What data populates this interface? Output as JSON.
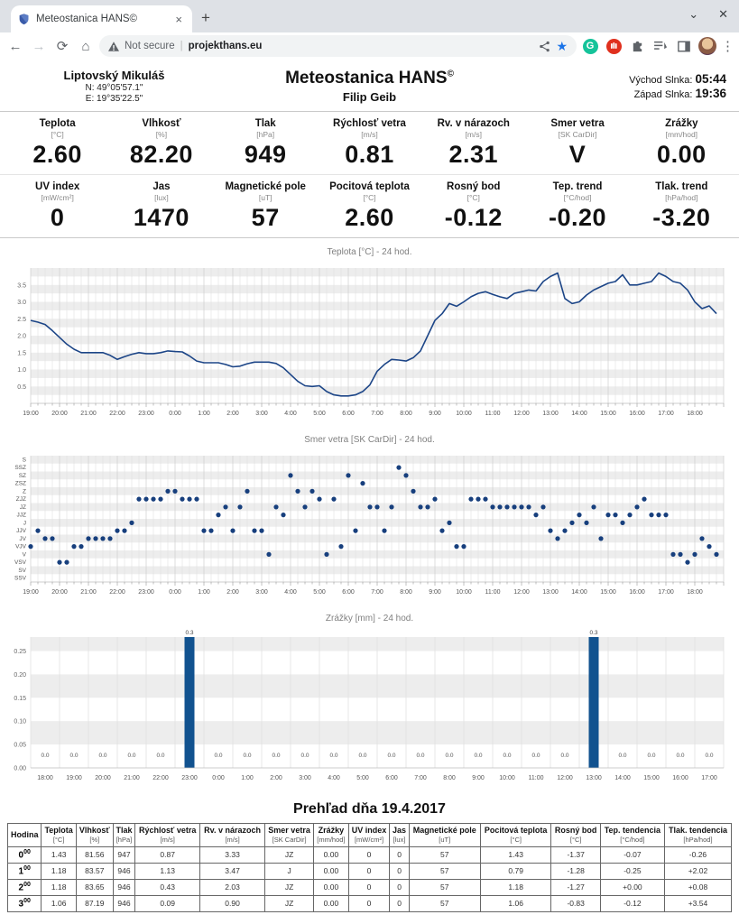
{
  "browser": {
    "tab_title": "Meteostanica HANS©",
    "new_tab": "+",
    "close_tab": "×",
    "window_chevron": "⌄",
    "window_close": "✕",
    "back": "←",
    "forward": "→",
    "reload": "⟳",
    "home": "⌂",
    "security": "Not secure",
    "url": "projekthans.eu",
    "menu": "⋮"
  },
  "header": {
    "location": "Liptovský Mikuláš",
    "lat": "N: 49°05'57.1\"",
    "lon": "E: 19°35'22.5\"",
    "title": "Meteostanica HANS",
    "title_sup": "©",
    "author": "Filip Geib",
    "sunrise_label": "Východ Slnka:",
    "sunrise": "05:44",
    "sunset_label": "Západ Slnka:",
    "sunset": "19:36"
  },
  "metrics_row1": [
    {
      "label": "Teplota",
      "unit": "[°C]",
      "value": "2.60"
    },
    {
      "label": "Vlhkosť",
      "unit": "[%]",
      "value": "82.20"
    },
    {
      "label": "Tlak",
      "unit": "[hPa]",
      "value": "949"
    },
    {
      "label": "Rýchlosť vetra",
      "unit": "[m/s]",
      "value": "0.81"
    },
    {
      "label": "Rv. v nárazoch",
      "unit": "[m/s]",
      "value": "2.31"
    },
    {
      "label": "Smer vetra",
      "unit": "[SK CarDir]",
      "value": "V"
    },
    {
      "label": "Zrážky",
      "unit": "[mm/hod]",
      "value": "0.00"
    }
  ],
  "metrics_row2": [
    {
      "label": "UV index",
      "unit": "[mW/cm²]",
      "value": "0"
    },
    {
      "label": "Jas",
      "unit": "[lux]",
      "value": "1470"
    },
    {
      "label": "Magnetické pole",
      "unit": "[uT]",
      "value": "57"
    },
    {
      "label": "Pocitová teplota",
      "unit": "[°C]",
      "value": "2.60"
    },
    {
      "label": "Rosný bod",
      "unit": "[°C]",
      "value": "-0.12"
    },
    {
      "label": "Tep. trend",
      "unit": "[°C/hod]",
      "value": "-0.20"
    },
    {
      "label": "Tlak. trend",
      "unit": "[hPa/hod]",
      "value": "-3.20"
    }
  ],
  "chart_data": [
    {
      "type": "line",
      "title": "Teplota [°C] - 24 hod.",
      "interval_min": 15,
      "x_hour_labels": [
        "19:00",
        "20:00",
        "21:00",
        "22:00",
        "23:00",
        "0:00",
        "1:00",
        "2:00",
        "3:00",
        "4:00",
        "5:00",
        "6:00",
        "7:00",
        "8:00",
        "9:00",
        "10:00",
        "11:00",
        "12:00",
        "13:00",
        "14:00",
        "15:00",
        "16:00",
        "17:00",
        "18:00"
      ],
      "ylim": [
        0,
        4
      ],
      "ytick_labels": [
        "0.5",
        "1.0",
        "1.5",
        "2.0",
        "2.5",
        "3.0",
        "3.5"
      ],
      "line_color": "#1c4587",
      "values": [
        2.45,
        2.4,
        2.33,
        2.15,
        1.95,
        1.75,
        1.6,
        1.5,
        1.5,
        1.5,
        1.5,
        1.42,
        1.3,
        1.38,
        1.45,
        1.5,
        1.47,
        1.47,
        1.5,
        1.55,
        1.53,
        1.52,
        1.4,
        1.25,
        1.2,
        1.2,
        1.2,
        1.15,
        1.08,
        1.1,
        1.17,
        1.22,
        1.22,
        1.22,
        1.18,
        1.05,
        0.85,
        0.65,
        0.52,
        0.5,
        0.52,
        0.35,
        0.25,
        0.22,
        0.22,
        0.25,
        0.35,
        0.55,
        0.95,
        1.15,
        1.3,
        1.28,
        1.25,
        1.35,
        1.55,
        2.0,
        2.45,
        2.65,
        2.95,
        2.87,
        3.0,
        3.15,
        3.25,
        3.3,
        3.22,
        3.15,
        3.1,
        3.25,
        3.3,
        3.35,
        3.32,
        3.6,
        3.75,
        3.85,
        3.1,
        2.95,
        3.0,
        3.2,
        3.35,
        3.45,
        3.55,
        3.6,
        3.8,
        3.5,
        3.5,
        3.55,
        3.6,
        3.85,
        3.75,
        3.6,
        3.55,
        3.35,
        3.0,
        2.8,
        2.88,
        2.65
      ]
    },
    {
      "type": "scatter",
      "title": "Smer vetra [SK CarDir] - 24 hod.",
      "interval_min": 15,
      "x_hour_labels": [
        "19:00",
        "20:00",
        "21:00",
        "22:00",
        "23:00",
        "0:00",
        "1:00",
        "2:00",
        "3:00",
        "4:00",
        "5:00",
        "6:00",
        "7:00",
        "8:00",
        "9:00",
        "10:00",
        "11:00",
        "12:00",
        "13:00",
        "14:00",
        "15:00",
        "16:00",
        "17:00",
        "18:00"
      ],
      "directions": [
        "S",
        "SSZ",
        "SZ",
        "ZSZ",
        "Z",
        "ZJZ",
        "JZ",
        "JJZ",
        "J",
        "JJV",
        "JV",
        "VJV",
        "V",
        "VSV",
        "SV",
        "SSV"
      ],
      "dot_color": "#173f7d",
      "values": [
        "VJV",
        "JJV",
        "JV",
        "JV",
        "VSV",
        "VSV",
        "VJV",
        "VJV",
        "JV",
        "JV",
        "JV",
        "JV",
        "JJV",
        "JJV",
        "J",
        "ZJZ",
        "ZJZ",
        "ZJZ",
        "ZJZ",
        "Z",
        "Z",
        "ZJZ",
        "ZJZ",
        "ZJZ",
        "JJV",
        "JJV",
        "JJZ",
        "JZ",
        "JJV",
        "JZ",
        "Z",
        "JJV",
        "JJV",
        "V",
        "JZ",
        "JJZ",
        "SZ",
        "Z",
        "JZ",
        "Z",
        "ZJZ",
        "V",
        "ZJZ",
        "VJV",
        "SZ",
        "JJV",
        "ZSZ",
        "JZ",
        "JZ",
        "JJV",
        "JZ",
        "SSZ",
        "SZ",
        "Z",
        "JZ",
        "JZ",
        "ZJZ",
        "JJV",
        "J",
        "VJV",
        "VJV",
        "ZJZ",
        "ZJZ",
        "ZJZ",
        "JZ",
        "JZ",
        "JZ",
        "JZ",
        "JZ",
        "JZ",
        "JJZ",
        "JZ",
        "JJV",
        "JV",
        "JJV",
        "J",
        "JJZ",
        "J",
        "JZ",
        "JV",
        "JJZ",
        "JJZ",
        "J",
        "JJZ",
        "JZ",
        "ZJZ",
        "JJZ",
        "JJZ",
        "JJZ",
        "V",
        "V",
        "VSV",
        "V",
        "JV",
        "VJV",
        "V"
      ]
    },
    {
      "type": "bar",
      "title": "Zrážky [mm] - 24 hod.",
      "categories": [
        "18:00",
        "19:00",
        "20:00",
        "21:00",
        "22:00",
        "23:00",
        "0:00",
        "1:00",
        "2:00",
        "3:00",
        "4:00",
        "5:00",
        "6:00",
        "7:00",
        "8:00",
        "9:00",
        "10:00",
        "11:00",
        "12:00",
        "13:00",
        "14:00",
        "15:00",
        "16:00",
        "17:00"
      ],
      "values": [
        0,
        0,
        0,
        0,
        0,
        0.3,
        0,
        0,
        0,
        0,
        0,
        0,
        0,
        0,
        0,
        0,
        0,
        0,
        0,
        0.3,
        0,
        0,
        0,
        0
      ],
      "ylim": [
        0,
        0.28
      ],
      "ytick_labels": [
        "0.00",
        "0.05",
        "0.10",
        "0.15",
        "0.20",
        "0.25"
      ],
      "bar_color": "#11528f"
    }
  ],
  "table": {
    "title": "Prehľad dňa 19.4.2017",
    "columns": [
      {
        "label": "Hodina",
        "unit": ""
      },
      {
        "label": "Teplota",
        "unit": "[°C]"
      },
      {
        "label": "Vlhkosť",
        "unit": "[%]"
      },
      {
        "label": "Tlak",
        "unit": "[hPa]"
      },
      {
        "label": "Rýchlosť vetra",
        "unit": "[m/s]"
      },
      {
        "label": "Rv. v nárazoch",
        "unit": "[m/s]"
      },
      {
        "label": "Smer vetra",
        "unit": "[SK CarDir]"
      },
      {
        "label": "Zrážky",
        "unit": "[mm/hod]"
      },
      {
        "label": "UV index",
        "unit": "[mW/cm²]"
      },
      {
        "label": "Jas",
        "unit": "[lux]"
      },
      {
        "label": "Magnetické pole",
        "unit": "[uT]"
      },
      {
        "label": "Pocitová teplota",
        "unit": "[°C]"
      },
      {
        "label": "Rosný bod",
        "unit": "[°C]"
      },
      {
        "label": "Tep. tendencia",
        "unit": "[°C/hod]"
      },
      {
        "label": "Tlak. tendencia",
        "unit": "[hPa/hod]"
      }
    ],
    "rows": [
      {
        "hodina": "0",
        "sup": "00",
        "cells": [
          "1.43",
          "81.56",
          "947",
          "0.87",
          "3.33",
          "JZ",
          "0.00",
          "0",
          "0",
          "57",
          "1.43",
          "-1.37",
          "-0.07",
          "-0.26"
        ]
      },
      {
        "hodina": "1",
        "sup": "00",
        "cells": [
          "1.18",
          "83.57",
          "946",
          "1.13",
          "3.47",
          "J",
          "0.00",
          "0",
          "0",
          "57",
          "0.79",
          "-1.28",
          "-0.25",
          "+2.02"
        ]
      },
      {
        "hodina": "2",
        "sup": "00",
        "cells": [
          "1.18",
          "83.65",
          "946",
          "0.43",
          "2.03",
          "JZ",
          "0.00",
          "0",
          "0",
          "57",
          "1.18",
          "-1.27",
          "+0.00",
          "+0.08"
        ]
      },
      {
        "hodina": "3",
        "sup": "00",
        "cells": [
          "1.06",
          "87.19",
          "946",
          "0.09",
          "0.90",
          "JZ",
          "0.00",
          "0",
          "0",
          "57",
          "1.06",
          "-0.83",
          "-0.12",
          "+3.54"
        ]
      }
    ]
  }
}
